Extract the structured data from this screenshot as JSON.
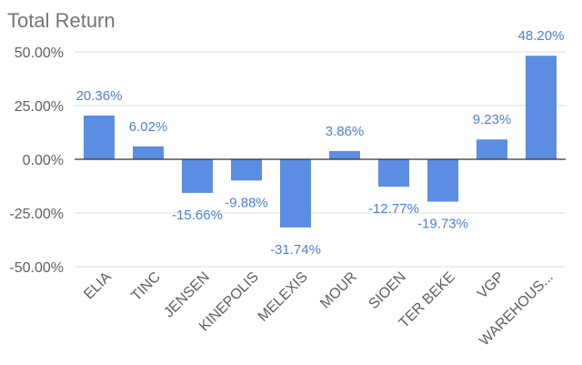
{
  "chart_data": {
    "type": "bar",
    "title": "Total Return",
    "xlabel": "",
    "ylabel": "",
    "categories": [
      "ELIA",
      "TINC",
      "JENSEN",
      "KINEPOLIS",
      "MELEXIS",
      "MOUR",
      "SIOEN",
      "TER BEKE",
      "VGP",
      "WAREHOUS..."
    ],
    "values": [
      20.36,
      6.02,
      -15.66,
      -9.88,
      -31.74,
      3.86,
      -12.77,
      -19.73,
      9.23,
      48.2
    ],
    "data_labels": [
      "20.36%",
      "6.02%",
      "-15.66%",
      "-9.88%",
      "-31.74%",
      "3.86%",
      "-12.77%",
      "-19.73%",
      "9.23%",
      "48.20%"
    ],
    "y_ticks": [
      50,
      25,
      0,
      -25,
      -50
    ],
    "y_tick_labels": [
      "50.00%",
      "25.00%",
      "0.00%",
      "-25.00%",
      "-50.00%"
    ],
    "ylim": [
      -50,
      50
    ],
    "grid": true,
    "legend": "none",
    "colors": {
      "bar": "#5B8DE3",
      "data_label": "#4A7FD8",
      "grid": "#dddddd",
      "zero_line": "#333333",
      "title": "#757575",
      "tick": "#5f5f5f"
    }
  }
}
